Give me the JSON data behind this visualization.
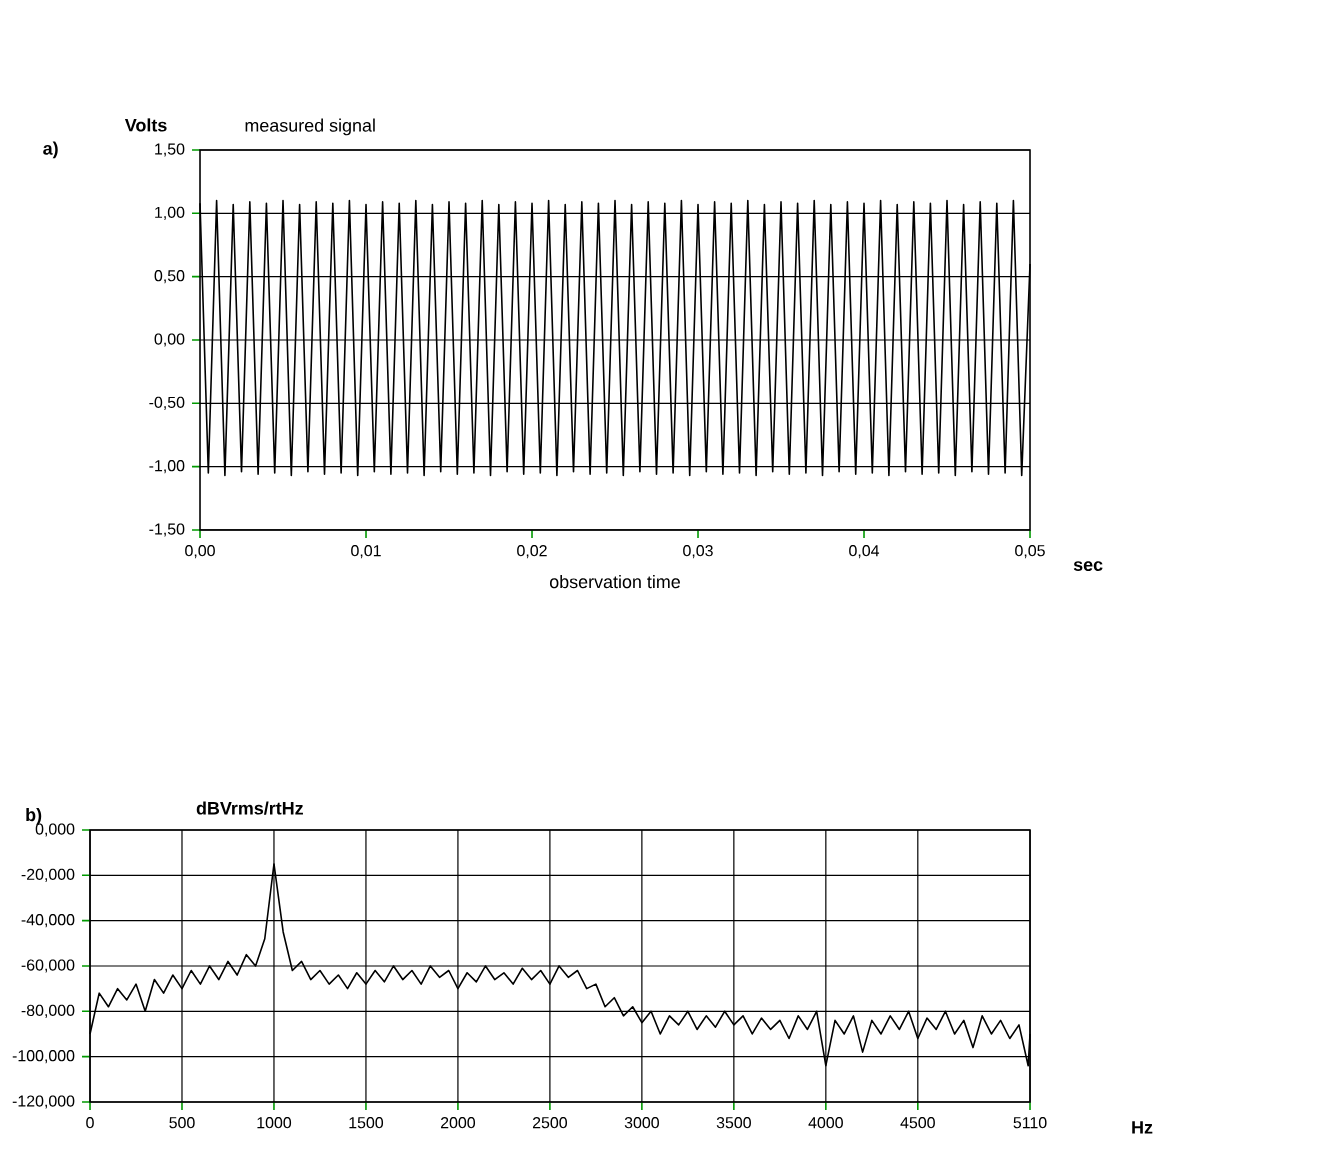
{
  "chart_data": [
    {
      "type": "line",
      "title": "measured signal",
      "xlabel": "observation time",
      "ylabel": "Volts",
      "annotations": [
        "a)",
        "sec"
      ],
      "xlim": [
        0,
        0.05
      ],
      "ylim": [
        -1.5,
        1.5
      ],
      "xticks": [
        {
          "value": 0,
          "label": "0,00"
        },
        {
          "value": 0.01,
          "label": "0,01"
        },
        {
          "value": 0.02,
          "label": "0,02"
        },
        {
          "value": 0.03,
          "label": "0,03"
        },
        {
          "value": 0.04,
          "label": "0,04"
        },
        {
          "value": 0.05,
          "label": "0,05"
        }
      ],
      "yticks": [
        {
          "value": -1.5,
          "label": "-1,50"
        },
        {
          "value": -1,
          "label": "-1,00"
        },
        {
          "value": -0.5,
          "label": "-0,50"
        },
        {
          "value": 0,
          "label": "0,00"
        },
        {
          "value": 0.5,
          "label": "0,50"
        },
        {
          "value": 1,
          "label": "1,00"
        },
        {
          "value": 1.5,
          "label": "1,50"
        }
      ],
      "grid": "y",
      "marker": "none",
      "line_style": "solid",
      "series": [
        {
          "color": "#000000",
          "x": [
            0,
            0.0005,
            0.001,
            0.0015,
            0.002,
            0.0025,
            0.003,
            0.0035,
            0.004,
            0.0045,
            0.005,
            0.0055,
            0.006,
            0.0065,
            0.007,
            0.0075,
            0.008,
            0.0085,
            0.009,
            0.0095,
            0.01,
            0.0105,
            0.011,
            0.0115,
            0.012,
            0.0125,
            0.013,
            0.0135,
            0.014,
            0.0145,
            0.015,
            0.0155,
            0.016,
            0.0165,
            0.017,
            0.0175,
            0.018,
            0.0185,
            0.019,
            0.0195,
            0.02,
            0.0205,
            0.021,
            0.0215,
            0.022,
            0.0225,
            0.023,
            0.0235,
            0.024,
            0.0245,
            0.025,
            0.0255,
            0.026,
            0.0265,
            0.027,
            0.0275,
            0.028,
            0.0285,
            0.029,
            0.0295,
            0.03,
            0.0305,
            0.031,
            0.0315,
            0.032,
            0.0325,
            0.033,
            0.0335,
            0.034,
            0.0345,
            0.035,
            0.0355,
            0.036,
            0.0365,
            0.037,
            0.0375,
            0.038,
            0.0385,
            0.039,
            0.0395,
            0.04,
            0.0405,
            0.041,
            0.0415,
            0.042,
            0.0425,
            0.043,
            0.0435,
            0.044,
            0.0445,
            0.045,
            0.0455,
            0.046,
            0.0465,
            0.047,
            0.0475,
            0.048,
            0.0485,
            0.049,
            0.0495,
            0.05
          ],
          "values": [
            1.08,
            -1.05,
            1.1,
            -1.07,
            1.07,
            -1.04,
            1.09,
            -1.06,
            1.08,
            -1.05,
            1.1,
            -1.07,
            1.07,
            -1.04,
            1.09,
            -1.06,
            1.08,
            -1.05,
            1.1,
            -1.07,
            1.07,
            -1.04,
            1.09,
            -1.06,
            1.08,
            -1.05,
            1.1,
            -1.07,
            1.07,
            -1.04,
            1.09,
            -1.06,
            1.08,
            -1.05,
            1.1,
            -1.07,
            1.07,
            -1.04,
            1.09,
            -1.06,
            1.08,
            -1.05,
            1.1,
            -1.07,
            1.07,
            -1.04,
            1.09,
            -1.06,
            1.08,
            -1.05,
            1.1,
            -1.07,
            1.07,
            -1.04,
            1.09,
            -1.06,
            1.08,
            -1.05,
            1.1,
            -1.07,
            1.07,
            -1.04,
            1.09,
            -1.06,
            1.08,
            -1.05,
            1.1,
            -1.07,
            1.07,
            -1.04,
            1.09,
            -1.06,
            1.08,
            -1.05,
            1.1,
            -1.07,
            1.07,
            -1.04,
            1.09,
            -1.06,
            1.08,
            -1.05,
            1.1,
            -1.07,
            1.07,
            -1.04,
            1.09,
            -1.06,
            1.08,
            -1.05,
            1.1,
            -1.07,
            1.07,
            -1.04,
            1.09,
            -1.06,
            1.08,
            -1.05,
            1.1,
            -1.07,
            0.6
          ]
        }
      ]
    },
    {
      "type": "line",
      "xlabel": "Hz",
      "ylabel": "dBVrms/rtHz",
      "annotations": [
        "b)"
      ],
      "xlim": [
        0,
        5110
      ],
      "ylim": [
        -120,
        0
      ],
      "xticks": [
        0,
        500,
        1000,
        1500,
        2000,
        2500,
        3000,
        3500,
        4000,
        4500,
        5110
      ],
      "yticks": [
        {
          "value": -120,
          "label": "-120,000"
        },
        {
          "value": -100,
          "label": "-100,000"
        },
        {
          "value": -80,
          "label": "-80,000"
        },
        {
          "value": -60,
          "label": "-60,000"
        },
        {
          "value": -40,
          "label": "-40,000"
        },
        {
          "value": -20,
          "label": "-20,000"
        },
        {
          "value": 0,
          "label": "0,000"
        }
      ],
      "grid": true,
      "marker": "none",
      "line_style": "solid",
      "series": [
        {
          "color": "#000000",
          "x": [
            0,
            50,
            100,
            150,
            200,
            250,
            300,
            350,
            400,
            450,
            500,
            550,
            600,
            650,
            700,
            750,
            800,
            850,
            900,
            950,
            1000,
            1050,
            1100,
            1150,
            1200,
            1250,
            1300,
            1350,
            1400,
            1450,
            1500,
            1550,
            1600,
            1650,
            1700,
            1750,
            1800,
            1850,
            1900,
            1950,
            2000,
            2050,
            2100,
            2150,
            2200,
            2250,
            2300,
            2350,
            2400,
            2450,
            2500,
            2550,
            2600,
            2650,
            2700,
            2750,
            2800,
            2850,
            2900,
            2950,
            3000,
            3050,
            3100,
            3150,
            3200,
            3250,
            3300,
            3350,
            3400,
            3450,
            3500,
            3550,
            3600,
            3650,
            3700,
            3750,
            3800,
            3850,
            3900,
            3950,
            4000,
            4050,
            4100,
            4150,
            4200,
            4250,
            4300,
            4350,
            4400,
            4450,
            4500,
            4550,
            4600,
            4650,
            4700,
            4750,
            4800,
            4850,
            4900,
            4950,
            5000,
            5050,
            5100,
            5110
          ],
          "values": [
            -90,
            -72,
            -78,
            -70,
            -75,
            -68,
            -80,
            -66,
            -72,
            -64,
            -70,
            -62,
            -68,
            -60,
            -66,
            -58,
            -64,
            -55,
            -60,
            -48,
            -15,
            -45,
            -62,
            -58,
            -66,
            -62,
            -68,
            -64,
            -70,
            -63,
            -68,
            -62,
            -67,
            -60,
            -66,
            -62,
            -68,
            -60,
            -65,
            -62,
            -70,
            -63,
            -67,
            -60,
            -66,
            -63,
            -68,
            -61,
            -66,
            -62,
            -68,
            -60,
            -65,
            -62,
            -70,
            -68,
            -78,
            -74,
            -82,
            -78,
            -85,
            -80,
            -90,
            -82,
            -86,
            -80,
            -88,
            -82,
            -87,
            -80,
            -86,
            -82,
            -90,
            -83,
            -88,
            -84,
            -92,
            -82,
            -88,
            -80,
            -104,
            -84,
            -90,
            -82,
            -98,
            -84,
            -90,
            -82,
            -88,
            -80,
            -92,
            -83,
            -88,
            -80,
            -90,
            -84,
            -96,
            -82,
            -90,
            -84,
            -92,
            -86,
            -104,
            -90
          ]
        }
      ]
    }
  ]
}
